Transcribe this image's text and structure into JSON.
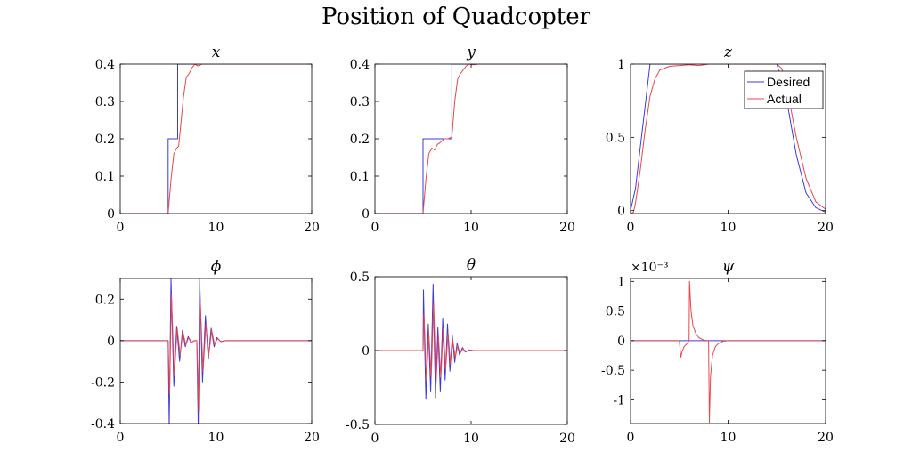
{
  "figure_title": "Position of Quadcopter",
  "colors": {
    "desired": "#3b3bd8",
    "actual": "#e8474e"
  },
  "chart_data": [
    {
      "type": "line",
      "title": "x",
      "xlim": [
        0,
        20
      ],
      "ylim": [
        0,
        0.4
      ],
      "xticks": [
        0,
        10,
        20
      ],
      "yticks": [
        0,
        0.1,
        0.2,
        0.3,
        0.4
      ],
      "ytick_labels": [
        "0",
        "0.1",
        "0.2",
        "0.3",
        "0.4"
      ],
      "series": [
        {
          "name": "Desired",
          "x": [
            0,
            5,
            5,
            6,
            6,
            20
          ],
          "y": [
            0,
            0,
            0.2,
            0.2,
            0.4,
            0.4
          ]
        },
        {
          "name": "Actual",
          "x": [
            0,
            5,
            5.3,
            5.6,
            5.9,
            6.1,
            6.3,
            6.6,
            6.9,
            7.2,
            7.5,
            7.8,
            8.1,
            8.5,
            9,
            10,
            20
          ],
          "y": [
            0,
            0,
            0.09,
            0.16,
            0.175,
            0.18,
            0.23,
            0.31,
            0.365,
            0.375,
            0.39,
            0.4,
            0.395,
            0.4,
            0.4,
            0.4,
            0.4
          ]
        }
      ]
    },
    {
      "type": "line",
      "title": "y",
      "xlim": [
        0,
        20
      ],
      "ylim": [
        0,
        0.4
      ],
      "xticks": [
        0,
        10,
        20
      ],
      "yticks": [
        0,
        0.1,
        0.2,
        0.3,
        0.4
      ],
      "ytick_labels": [
        "0",
        "0.1",
        "0.2",
        "0.3",
        "0.4"
      ],
      "series": [
        {
          "name": "Desired",
          "x": [
            0,
            5,
            5,
            8,
            8,
            20
          ],
          "y": [
            0,
            0,
            0.2,
            0.2,
            0.4,
            0.4
          ]
        },
        {
          "name": "Actual",
          "x": [
            0,
            5,
            5.3,
            5.6,
            5.9,
            6.2,
            6.5,
            6.8,
            7.2,
            7.6,
            8,
            8.3,
            8.6,
            8.9,
            9.2,
            9.5,
            9.8,
            10.2,
            10.8,
            20
          ],
          "y": [
            0,
            0,
            0.09,
            0.16,
            0.175,
            0.17,
            0.185,
            0.19,
            0.2,
            0.2,
            0.205,
            0.3,
            0.36,
            0.375,
            0.385,
            0.395,
            0.4,
            0.398,
            0.4,
            0.4
          ]
        }
      ]
    },
    {
      "type": "line",
      "title": "z",
      "xlim": [
        0,
        20
      ],
      "ylim": [
        -0.02,
        1
      ],
      "xticks": [
        0,
        10,
        20
      ],
      "yticks": [
        0,
        0.5,
        1
      ],
      "ytick_labels": [
        "0",
        "0.5",
        "1"
      ],
      "legend": {
        "position": "top-right",
        "entries": [
          "Desired",
          "Actual"
        ]
      },
      "series": [
        {
          "name": "Desired",
          "x": [
            0,
            0.5,
            2,
            10,
            15,
            16,
            17,
            18,
            19,
            20
          ],
          "y": [
            0,
            0.15,
            1,
            1,
            1,
            0.76,
            0.38,
            0.12,
            0.02,
            -0.01
          ]
        },
        {
          "name": "Actual",
          "x": [
            0,
            0.3,
            0.5,
            1,
            1.5,
            2,
            2.5,
            3,
            4,
            5,
            6,
            7,
            8,
            10,
            15,
            15.5,
            16,
            17,
            18,
            19,
            20
          ],
          "y": [
            -0.02,
            -0.01,
            0.05,
            0.28,
            0.55,
            0.78,
            0.9,
            0.96,
            0.985,
            0.99,
            0.995,
            0.99,
            1,
            1,
            1,
            0.97,
            0.85,
            0.5,
            0.22,
            0.06,
            0.01
          ]
        }
      ]
    },
    {
      "type": "line",
      "title": "ϕ",
      "xlim": [
        0,
        20
      ],
      "ylim": [
        -0.4,
        0.3
      ],
      "xticks": [
        0,
        10,
        20
      ],
      "yticks": [
        -0.4,
        -0.2,
        0,
        0.2
      ],
      "ytick_labels": [
        "-0.4",
        "-0.2",
        "0",
        "0.2"
      ],
      "series": [
        {
          "name": "Desired",
          "x": [
            0,
            5,
            5.12,
            5.3,
            5.6,
            5.9,
            6.2,
            6.5,
            6.8,
            7.1,
            7.4,
            7.7,
            8,
            8.15,
            8.3,
            8.6,
            8.9,
            9.2,
            9.5,
            9.8,
            10.1,
            10.5,
            11,
            20
          ],
          "y": [
            0,
            0,
            -0.42,
            0.3,
            -0.22,
            0.07,
            -0.1,
            0.05,
            -0.03,
            0.02,
            -0.01,
            0,
            0,
            -0.42,
            0.3,
            -0.2,
            0.12,
            -0.09,
            0.06,
            -0.03,
            0.015,
            -0.005,
            0,
            0
          ]
        },
        {
          "name": "Actual",
          "x": [
            0,
            5,
            5.15,
            5.35,
            5.65,
            5.95,
            6.25,
            6.55,
            6.85,
            7.15,
            7.45,
            7.75,
            8,
            8.2,
            8.35,
            8.65,
            8.95,
            9.25,
            9.55,
            9.85,
            10.15,
            10.5,
            11,
            20
          ],
          "y": [
            0,
            0,
            -0.26,
            0.22,
            -0.17,
            0.06,
            -0.07,
            0.04,
            -0.02,
            0.015,
            -0.008,
            0,
            0,
            -0.34,
            0.2,
            -0.15,
            0.08,
            -0.07,
            0.05,
            -0.02,
            0.01,
            -0.004,
            0,
            0
          ]
        }
      ]
    },
    {
      "type": "line",
      "title": "θ",
      "xlim": [
        0,
        20
      ],
      "ylim": [
        -0.5,
        0.5
      ],
      "xticks": [
        0,
        10,
        20
      ],
      "yticks": [
        -0.5,
        0,
        0.5
      ],
      "ytick_labels": [
        "-0.5",
        "0",
        "0.5"
      ],
      "series": [
        {
          "name": "Desired",
          "x": [
            0,
            5,
            5.05,
            5.3,
            5.55,
            5.8,
            6.05,
            6.3,
            6.55,
            6.8,
            7.05,
            7.3,
            7.55,
            7.8,
            8.05,
            8.3,
            8.55,
            8.8,
            9.1,
            9.4,
            9.8,
            10.2,
            20
          ],
          "y": [
            0,
            0,
            0.41,
            -0.33,
            0.18,
            -0.28,
            0.45,
            -0.32,
            0.16,
            -0.28,
            0.22,
            -0.2,
            0.18,
            -0.14,
            0.1,
            -0.08,
            0.05,
            -0.03,
            0.02,
            -0.01,
            0.005,
            0,
            0
          ]
        },
        {
          "name": "Actual",
          "x": [
            0,
            5,
            5.1,
            5.35,
            5.6,
            5.85,
            6.1,
            6.35,
            6.6,
            6.85,
            7.1,
            7.35,
            7.6,
            7.85,
            8.1,
            8.35,
            8.6,
            8.85,
            9.15,
            9.45,
            9.85,
            10.2,
            20
          ],
          "y": [
            0,
            0,
            0.25,
            -0.2,
            0.12,
            -0.18,
            0.33,
            -0.22,
            0.1,
            -0.18,
            0.15,
            -0.13,
            0.12,
            -0.09,
            0.07,
            -0.05,
            0.035,
            -0.02,
            0.012,
            -0.006,
            0.003,
            0,
            0
          ]
        }
      ]
    },
    {
      "type": "line",
      "title": "ψ",
      "exponent_label": "×10⁻³",
      "xlim": [
        0,
        20
      ],
      "ylim": [
        -1.4,
        1.05
      ],
      "xticks": [
        0,
        10,
        20
      ],
      "yticks": [
        -1,
        -0.5,
        0,
        0.5,
        1
      ],
      "ytick_labels": [
        "-1",
        "-0.5",
        "0",
        "0.5",
        "1"
      ],
      "series": [
        {
          "name": "Desired",
          "x": [
            0,
            20
          ],
          "y": [
            0,
            0
          ]
        },
        {
          "name": "Actual",
          "x": [
            0,
            5,
            5.15,
            5.3,
            5.5,
            5.8,
            6,
            6.05,
            6.2,
            6.4,
            6.7,
            7,
            7.5,
            8,
            8.08,
            8.2,
            8.4,
            8.7,
            9,
            9.5,
            10,
            20
          ],
          "y": [
            0,
            0,
            -0.28,
            -0.18,
            -0.1,
            -0.05,
            0,
            1.0,
            0.5,
            0.25,
            0.12,
            0.05,
            0.01,
            0,
            -1.38,
            -0.6,
            -0.25,
            -0.1,
            -0.05,
            -0.01,
            0,
            0
          ]
        }
      ]
    }
  ]
}
